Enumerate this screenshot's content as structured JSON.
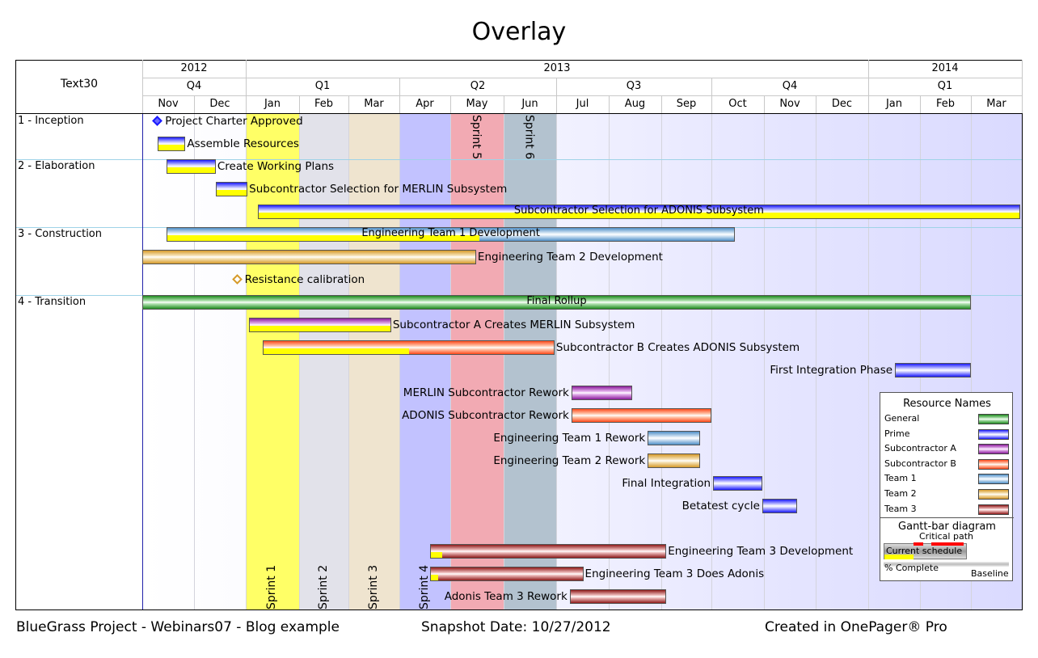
{
  "title": "Overlay",
  "label_column_title": "Text30",
  "timeline": {
    "years": [
      {
        "label": "2012",
        "from": "2012-11",
        "to": "2012-12"
      },
      {
        "label": "2013",
        "from": "2013-01",
        "to": "2013-12"
      },
      {
        "label": "2014",
        "from": "2014-01",
        "to": "2014-03"
      }
    ],
    "quarters": [
      {
        "label": "Q4",
        "from": "2012-11",
        "to": "2012-12"
      },
      {
        "label": "Q1",
        "from": "2013-01",
        "to": "2013-03"
      },
      {
        "label": "Q2",
        "from": "2013-04",
        "to": "2013-06"
      },
      {
        "label": "Q3",
        "from": "2013-07",
        "to": "2013-09"
      },
      {
        "label": "Q4",
        "from": "2013-10",
        "to": "2013-12"
      },
      {
        "label": "Q1",
        "from": "2014-01",
        "to": "2014-03"
      }
    ],
    "months": [
      "Nov",
      "Dec",
      "Jan",
      "Feb",
      "Mar",
      "Apr",
      "May",
      "Jun",
      "Jul",
      "Aug",
      "Sep",
      "Oct",
      "Nov",
      "Dec",
      "Jan",
      "Feb",
      "Mar"
    ]
  },
  "chart_data": {
    "type": "gantt",
    "title": "Overlay",
    "x_axis": {
      "unit": "month",
      "start": "2012-11",
      "end": "2014-03"
    },
    "sprints": [
      {
        "label": "Sprint 1",
        "start": "2013-01",
        "end": "2013-01",
        "color": "#ffff66",
        "label_pos": "bottom"
      },
      {
        "label": "Sprint 2",
        "start": "2013-02",
        "end": "2013-02",
        "color": "#e2e2ea",
        "label_pos": "bottom"
      },
      {
        "label": "Sprint 3",
        "start": "2013-03",
        "end": "2013-03",
        "color": "#efe4cf",
        "label_pos": "bottom"
      },
      {
        "label": "Sprint 4",
        "start": "2013-04",
        "end": "2013-04",
        "color": "#c2c2ff",
        "label_pos": "bottom"
      },
      {
        "label": "Sprint 5",
        "start": "2013-05",
        "end": "2013-05",
        "color": "#f2aab3",
        "label_pos": "top"
      },
      {
        "label": "Sprint 6",
        "start": "2013-06",
        "end": "2013-06",
        "color": "#b3c2cf",
        "label_pos": "top"
      }
    ],
    "groups": [
      {
        "label": "1 - Inception",
        "row": 0
      },
      {
        "label": "2 - Elaboration",
        "row": 2
      },
      {
        "label": "3 - Construction",
        "row": 5
      },
      {
        "label": "4 - Transition",
        "row": 8
      }
    ],
    "tasks": [
      {
        "name": "Project Charter Approved",
        "type": "milestone",
        "row": 0,
        "date": "2012-11-10",
        "resource": "Prime",
        "label_pos": "right"
      },
      {
        "name": "Assemble Resources",
        "type": "bar",
        "row": 1,
        "start": "2012-11-10",
        "end": "2012-11-26",
        "resource": "Prime",
        "complete": 100,
        "label_pos": "right"
      },
      {
        "name": "Create Working Plans",
        "type": "bar",
        "row": 2,
        "start": "2012-11-15",
        "end": "2012-12-14",
        "resource": "Prime",
        "complete": 100,
        "label_pos": "right"
      },
      {
        "name": "Subcontractor Selection for MERLIN Subsystem",
        "type": "bar",
        "row": 3,
        "start": "2012-12-14",
        "end": "2013-01-02",
        "resource": "Prime",
        "complete": 100,
        "label_pos": "right"
      },
      {
        "name": "Subcontractor Selection for ADONIS Subsystem",
        "type": "bar",
        "row": 4,
        "start": "2013-01-08",
        "end": "2014-03-31",
        "resource": "Prime",
        "complete": 100,
        "label_pos": "inside"
      },
      {
        "name": "Engineering Team 1 Development",
        "type": "bar",
        "row": 5,
        "start": "2012-11-15",
        "end": "2013-10-15",
        "resource": "Team 1",
        "complete": 55,
        "label_pos": "inside"
      },
      {
        "name": "Engineering Team 2 Development",
        "type": "bar",
        "row": 6,
        "start": "2012-11-01",
        "end": "2013-05-16",
        "resource": "Team 2",
        "complete": 0,
        "label_pos": "right"
      },
      {
        "name": "Resistance calibration",
        "type": "milestone",
        "row": 7,
        "date": "2012-12-27",
        "resource": "Team 2",
        "label_pos": "right"
      },
      {
        "name": "Final Rollup",
        "type": "bar",
        "row": 8,
        "start": "2012-11-01",
        "end": "2014-03-01",
        "resource": "General",
        "complete": 0,
        "label_pos": "inside"
      },
      {
        "name": "Subcontractor A Creates MERLIN Subsystem",
        "type": "bar",
        "row": 9,
        "start": "2013-01-03",
        "end": "2013-03-27",
        "resource": "Subcontractor A",
        "complete": 100,
        "label_pos": "right"
      },
      {
        "name": "Subcontractor B Creates ADONIS Subsystem",
        "type": "bar",
        "row": 10,
        "start": "2013-01-11",
        "end": "2013-06-30",
        "resource": "Subcontractor B",
        "complete": 50,
        "label_pos": "right"
      },
      {
        "name": "First Integration Phase",
        "type": "bar",
        "row": 11,
        "start": "2014-01-17",
        "end": "2014-03-01",
        "resource": "Prime",
        "complete": 0,
        "label_pos": "left"
      },
      {
        "name": "MERLIN Subcontractor Rework",
        "type": "bar",
        "row": 12,
        "start": "2013-07-10",
        "end": "2013-08-15",
        "resource": "Subcontractor A",
        "complete": 0,
        "label_pos": "left"
      },
      {
        "name": "ADONIS Subcontractor Rework",
        "type": "bar",
        "row": 13,
        "start": "2013-07-10",
        "end": "2013-10-01",
        "resource": "Subcontractor B",
        "complete": 0,
        "label_pos": "left"
      },
      {
        "name": "Engineering Team 1 Rework",
        "type": "bar",
        "row": 14,
        "start": "2013-08-24",
        "end": "2013-09-24",
        "resource": "Team 1",
        "complete": 0,
        "label_pos": "left"
      },
      {
        "name": "Engineering Team 2 Rework",
        "type": "bar",
        "row": 15,
        "start": "2013-08-24",
        "end": "2013-09-24",
        "resource": "Team 2",
        "complete": 0,
        "label_pos": "left"
      },
      {
        "name": "Final Integration",
        "type": "bar",
        "row": 16,
        "start": "2013-10-02",
        "end": "2013-10-31",
        "resource": "Prime",
        "complete": 0,
        "label_pos": "left"
      },
      {
        "name": "Betatest cycle",
        "type": "bar",
        "row": 17,
        "start": "2013-10-31",
        "end": "2013-11-20",
        "resource": "Prime",
        "complete": 0,
        "label_pos": "left"
      },
      {
        "name": "Engineering Team 3 Development",
        "type": "bar",
        "row": 19,
        "start": "2013-04-19",
        "end": "2013-09-04",
        "resource": "Team 3",
        "complete": 5,
        "label_pos": "right"
      },
      {
        "name": "Engineering Team 3 Does Adonis",
        "type": "bar",
        "row": 20,
        "start": "2013-04-19",
        "end": "2013-07-17",
        "resource": "Team 3",
        "complete": 5,
        "label_pos": "right"
      },
      {
        "name": "Adonis Team 3 Rework",
        "type": "bar",
        "row": 21,
        "start": "2013-07-09",
        "end": "2013-09-04",
        "resource": "Team 3",
        "complete": 0,
        "label_pos": "left"
      }
    ],
    "resources": [
      {
        "name": "General",
        "color": "#1e8a1e",
        "light": "#b7e6b7"
      },
      {
        "name": "Prime",
        "color": "#1a1aff",
        "light": "#d6d6ff"
      },
      {
        "name": "Subcontractor A",
        "color": "#8a1a9a",
        "light": "#e8b8f0"
      },
      {
        "name": "Subcontractor B",
        "color": "#ff4a1a",
        "light": "#ffd0b8"
      },
      {
        "name": "Team 1",
        "color": "#4f8fc7",
        "light": "#dbe9f6"
      },
      {
        "name": "Team 2",
        "color": "#d69a2a",
        "light": "#f7e6bf"
      },
      {
        "name": "Team 3",
        "color": "#8e1a1a",
        "light": "#f0c0c0"
      }
    ],
    "complete_color": "#ffff00"
  },
  "legend": {
    "title": "Resource Names",
    "gantt_title": "Gantt-bar diagram",
    "critical_path": "Critical path",
    "current_schedule": "Current schedule",
    "percent_complete": "% Complete",
    "baseline": "Baseline"
  },
  "footer": {
    "project": "BlueGrass Project - Webinars07 - Blog example",
    "snapshot": "Snapshot Date: 10/27/2012",
    "created": "Created in OnePager® Pro"
  }
}
